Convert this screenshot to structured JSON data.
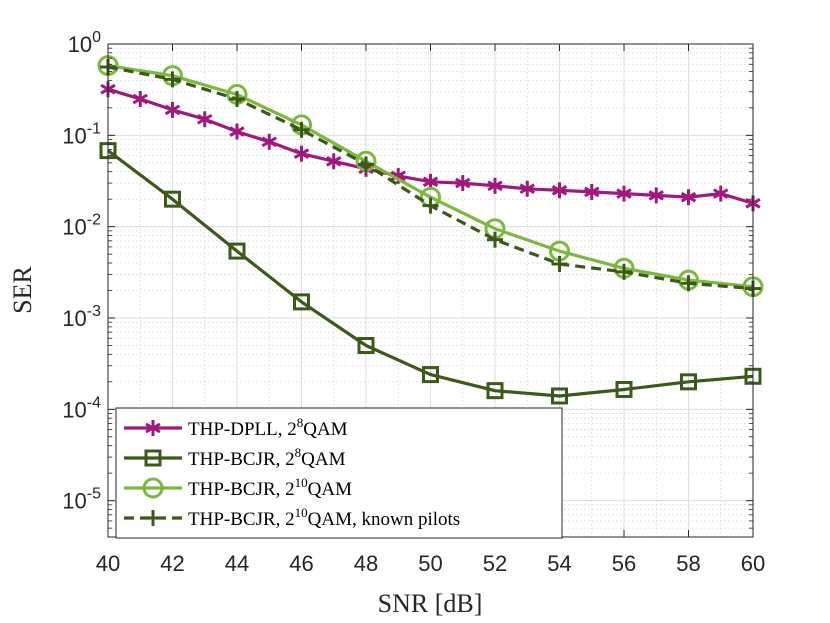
{
  "chart_data": {
    "type": "line",
    "xlabel": "SNR [dB]",
    "ylabel": "SER",
    "xlim": [
      40,
      60
    ],
    "ylim": [
      4e-06,
      1
    ],
    "yscale": "log",
    "grid": true,
    "minor_grid": true,
    "legend_position": "bottom-left",
    "x_ticks": [
      40,
      42,
      44,
      46,
      48,
      50,
      52,
      54,
      56,
      58,
      60
    ],
    "y_ticks": [
      {
        "value": 1,
        "base": "10",
        "exp": "0"
      },
      {
        "value": 0.1,
        "base": "10",
        "exp": "-1"
      },
      {
        "value": 0.01,
        "base": "10",
        "exp": "-2"
      },
      {
        "value": 0.001,
        "base": "10",
        "exp": "-3"
      },
      {
        "value": 0.0001,
        "base": "10",
        "exp": "-4"
      },
      {
        "value": 1e-05,
        "base": "10",
        "exp": "-5"
      }
    ],
    "series": [
      {
        "name": "THP-DPLL, 2^8QAM",
        "label_parts": {
          "pre": "THP-DPLL, 2",
          "sup": "8",
          "post": "QAM"
        },
        "color": "#a0197c",
        "marker": "asterisk",
        "dash": "solid",
        "x": [
          40,
          41,
          42,
          43,
          44,
          45,
          46,
          47,
          48,
          49,
          50,
          51,
          52,
          53,
          54,
          55,
          56,
          57,
          58,
          59,
          60
        ],
        "values": [
          0.32,
          0.25,
          0.19,
          0.15,
          0.11,
          0.085,
          0.063,
          0.052,
          0.043,
          0.036,
          0.031,
          0.03,
          0.028,
          0.026,
          0.025,
          0.024,
          0.023,
          0.022,
          0.021,
          0.023,
          0.018
        ]
      },
      {
        "name": "THP-BCJR, 2^8QAM",
        "label_parts": {
          "pre": "THP-BCJR, 2",
          "sup": "8",
          "post": "QAM"
        },
        "color": "#3b5a1a",
        "marker": "square",
        "dash": "solid",
        "x": [
          40,
          42,
          44,
          46,
          48,
          50,
          52,
          54,
          56,
          58,
          60
        ],
        "values": [
          0.068,
          0.02,
          0.0054,
          0.0015,
          0.0005,
          0.00024,
          0.00016,
          0.00014,
          0.000165,
          0.0002,
          0.00023
        ]
      },
      {
        "name": "THP-BCJR, 2^10QAM",
        "label_parts": {
          "pre": "THP-BCJR, 2",
          "sup": "10",
          "post": "QAM"
        },
        "color": "#7ab83e",
        "marker": "circle",
        "dash": "solid",
        "x": [
          40,
          42,
          44,
          46,
          48,
          50,
          52,
          54,
          56,
          58,
          60
        ],
        "values": [
          0.58,
          0.45,
          0.28,
          0.13,
          0.052,
          0.021,
          0.0095,
          0.0054,
          0.0035,
          0.0026,
          0.0022
        ]
      },
      {
        "name": "THP-BCJR, 2^10QAM, known pilots",
        "label_parts": {
          "pre": "THP-BCJR, 2",
          "sup": "10",
          "post": "QAM, known pilots"
        },
        "color": "#3b5a1a",
        "marker": "plus",
        "dash": "dashed",
        "x": [
          40,
          42,
          44,
          46,
          48,
          50,
          52,
          54,
          56,
          58,
          60
        ],
        "values": [
          0.56,
          0.41,
          0.25,
          0.115,
          0.048,
          0.017,
          0.0072,
          0.0039,
          0.0032,
          0.0024,
          0.0021
        ]
      }
    ]
  }
}
